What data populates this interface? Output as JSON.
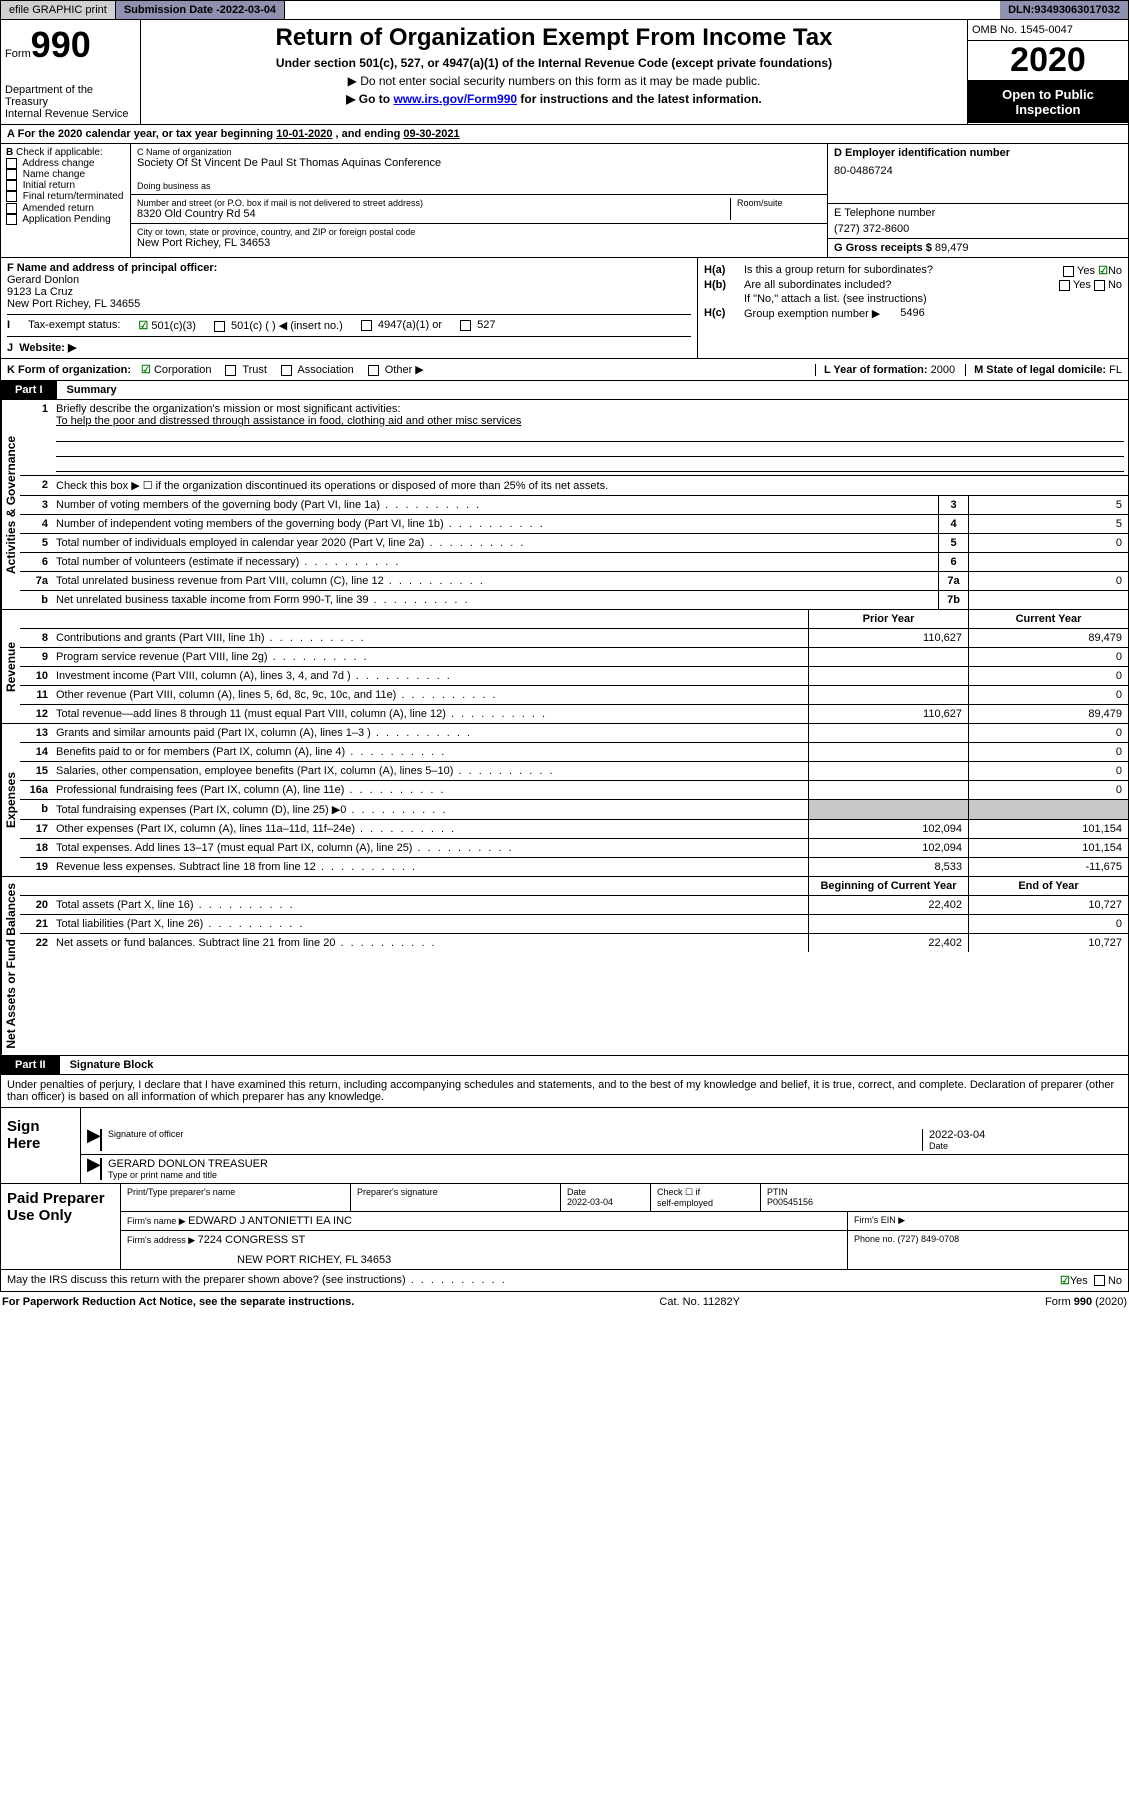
{
  "topbar": {
    "efile_label": "efile GRAPHIC print",
    "submission_label": "Submission Date - ",
    "submission_date": "2022-03-04",
    "dln_label": "DLN: ",
    "dln": "93493063017032"
  },
  "header": {
    "form_label": "Form",
    "form_number": "990",
    "dept": "Department of the Treasury",
    "irs": "Internal Revenue Service",
    "title": "Return of Organization Exempt From Income Tax",
    "sub1": "Under section 501(c), 527, or 4947(a)(1) of the Internal Revenue Code (except private foundations)",
    "sub2": "▶ Do not enter social security numbers on this form as it may be made public.",
    "sub3_a": "▶ Go to ",
    "sub3_link": "www.irs.gov/Form990",
    "sub3_b": " for instructions and the latest information.",
    "omb": "OMB No. 1545-0047",
    "year": "2020",
    "inspect": "Open to Public Inspection"
  },
  "A": {
    "line": "For the 2020 calendar year, or tax year beginning ",
    "begin": "10-01-2020",
    "mid": "    , and ending ",
    "end": "09-30-2021"
  },
  "B": {
    "label": "Check if applicable:",
    "items": [
      "Address change",
      "Name change",
      "Initial return",
      "Final return/terminated",
      "Amended return",
      "Application Pending"
    ],
    "prefix": "B"
  },
  "C": {
    "name_lbl": "C Name of organization",
    "name": "Society Of St Vincent De Paul St Thomas Aquinas Conference",
    "dba_lbl": "Doing business as",
    "addr_lbl": "Number and street (or P.O. box if mail is not delivered to street address)",
    "room_lbl": "Room/suite",
    "addr": "8320 Old Country Rd 54",
    "city_lbl": "City or town, state or province, country, and ZIP or foreign postal code",
    "city": "New Port Richey, FL  34653"
  },
  "D": {
    "lbl": "D Employer identification number",
    "val": "80-0486724"
  },
  "E": {
    "lbl": "E Telephone number",
    "val": "(727) 372-8600"
  },
  "G": {
    "lbl": "G Gross receipts $ ",
    "val": "89,479"
  },
  "F": {
    "lbl": "F  Name and address of principal officer:",
    "name": "Gerard Donlon",
    "addr1": "9123 La Cruz",
    "addr2": "New Port Richey, FL  34655"
  },
  "H": {
    "a_lbl": "Is this a group return for subordinates?",
    "a_prefix": "H(a)",
    "b_lbl": "Are all subordinates included?",
    "b_prefix": "H(b)",
    "b_note": "If \"No,\" attach a list. (see instructions)",
    "c_lbl": "Group exemption number ▶",
    "c_prefix": "H(c)",
    "c_val": "5496",
    "yes": "Yes",
    "no": "No"
  },
  "IJ": {
    "I_lbl": "Tax-exempt status:",
    "opt1": "501(c)(3)",
    "opt2": "501(c) (  ) ◀ (insert no.)",
    "opt3": "4947(a)(1) or",
    "opt4": "527",
    "J_lbl": "Website: ▶"
  },
  "K": {
    "lbl": "K Form of organization:",
    "opts": [
      "Corporation",
      "Trust",
      "Association",
      "Other ▶"
    ],
    "L_lbl": "L Year of formation: ",
    "L_val": "2000",
    "M_lbl": "M State of legal domicile: ",
    "M_val": "FL"
  },
  "part1": {
    "label": "Part I",
    "title": "Summary"
  },
  "summary": {
    "side1": "Activities & Governance",
    "side2": "Revenue",
    "side3": "Expenses",
    "side4": "Net Assets or Fund Balances",
    "q1": "Briefly describe the organization's mission or most significant activities:",
    "q1_ans": "To help the poor and distressed through assistance in food, clothing aid and other misc services",
    "q2": "Check this box ▶ ☐  if the organization discontinued its operations or disposed of more than 25% of its net assets.",
    "lines": [
      {
        "n": "3",
        "t": "Number of voting members of the governing body (Part VI, line 1a)",
        "box": "3",
        "v": "5"
      },
      {
        "n": "4",
        "t": "Number of independent voting members of the governing body (Part VI, line 1b)",
        "box": "4",
        "v": "5"
      },
      {
        "n": "5",
        "t": "Total number of individuals employed in calendar year 2020 (Part V, line 2a)",
        "box": "5",
        "v": "0"
      },
      {
        "n": "6",
        "t": "Total number of volunteers (estimate if necessary)",
        "box": "6",
        "v": ""
      },
      {
        "n": "7a",
        "t": "Total unrelated business revenue from Part VIII, column (C), line 12",
        "box": "7a",
        "v": "0"
      },
      {
        "n": "b",
        "t": "Net unrelated business taxable income from Form 990-T, line 39",
        "box": "7b",
        "v": ""
      }
    ],
    "col_prior": "Prior Year",
    "col_curr": "Current Year",
    "col_begin": "Beginning of Current Year",
    "col_end": "End of Year",
    "rev": [
      {
        "n": "8",
        "t": "Contributions and grants (Part VIII, line 1h)",
        "p": "110,627",
        "c": "89,479"
      },
      {
        "n": "9",
        "t": "Program service revenue (Part VIII, line 2g)",
        "p": "",
        "c": "0"
      },
      {
        "n": "10",
        "t": "Investment income (Part VIII, column (A), lines 3, 4, and 7d )",
        "p": "",
        "c": "0"
      },
      {
        "n": "11",
        "t": "Other revenue (Part VIII, column (A), lines 5, 6d, 8c, 9c, 10c, and 11e)",
        "p": "",
        "c": "0"
      },
      {
        "n": "12",
        "t": "Total revenue—add lines 8 through 11 (must equal Part VIII, column (A), line 12)",
        "p": "110,627",
        "c": "89,479"
      }
    ],
    "exp": [
      {
        "n": "13",
        "t": "Grants and similar amounts paid (Part IX, column (A), lines 1–3 )",
        "p": "",
        "c": "0"
      },
      {
        "n": "14",
        "t": "Benefits paid to or for members (Part IX, column (A), line 4)",
        "p": "",
        "c": "0"
      },
      {
        "n": "15",
        "t": "Salaries, other compensation, employee benefits (Part IX, column (A), lines 5–10)",
        "p": "",
        "c": "0"
      },
      {
        "n": "16a",
        "t": "Professional fundraising fees (Part IX, column (A), line 11e)",
        "p": "",
        "c": "0"
      },
      {
        "n": "b",
        "t": "Total fundraising expenses (Part IX, column (D), line 25) ▶0",
        "p": "GREY",
        "c": "GREY"
      },
      {
        "n": "17",
        "t": "Other expenses (Part IX, column (A), lines 11a–11d, 11f–24e)",
        "p": "102,094",
        "c": "101,154"
      },
      {
        "n": "18",
        "t": "Total expenses. Add lines 13–17 (must equal Part IX, column (A), line 25)",
        "p": "102,094",
        "c": "101,154"
      },
      {
        "n": "19",
        "t": "Revenue less expenses. Subtract line 18 from line 12",
        "p": "8,533",
        "c": "-11,675"
      }
    ],
    "net": [
      {
        "n": "20",
        "t": "Total assets (Part X, line 16)",
        "p": "22,402",
        "c": "10,727"
      },
      {
        "n": "21",
        "t": "Total liabilities (Part X, line 26)",
        "p": "",
        "c": "0"
      },
      {
        "n": "22",
        "t": "Net assets or fund balances. Subtract line 21 from line 20",
        "p": "22,402",
        "c": "10,727"
      }
    ]
  },
  "part2": {
    "label": "Part II",
    "title": "Signature Block"
  },
  "sig": {
    "jurat": "Under penalties of perjury, I declare that I have examined this return, including accompanying schedules and statements, and to the best of my knowledge and belief, it is true, correct, and complete. Declaration of preparer (other than officer) is based on all information of which preparer has any knowledge.",
    "sign_here": "Sign Here",
    "sig_officer": "Signature of officer",
    "date_lbl": "Date",
    "date": "2022-03-04",
    "name": "GERARD DONLON  TREASUER",
    "name_lbl": "Type or print name and title"
  },
  "prep": {
    "label": "Paid Preparer Use Only",
    "h1": "Print/Type preparer's name",
    "h2": "Preparer's signature",
    "h3": "Date",
    "h3v": "2022-03-04",
    "h4a": "Check ☐ if",
    "h4b": "self-employed",
    "h5": "PTIN",
    "h5v": "P00545156",
    "firm_lbl": "Firm's name    ▶ ",
    "firm": "EDWARD J ANTONIETTI EA INC",
    "ein_lbl": "Firm's EIN ▶",
    "addr_lbl": "Firm's address ▶ ",
    "addr1": "7224 CONGRESS ST",
    "addr2": "NEW PORT RICHEY, FL  34653",
    "phone_lbl": "Phone no. ",
    "phone": "(727) 849-0708",
    "discuss": "May the IRS discuss this return with the preparer shown above? (see instructions)"
  },
  "footer": {
    "pra": "For Paperwork Reduction Act Notice, see the separate instructions.",
    "cat": "Cat. No. 11282Y",
    "form": "Form 990 (2020)"
  }
}
